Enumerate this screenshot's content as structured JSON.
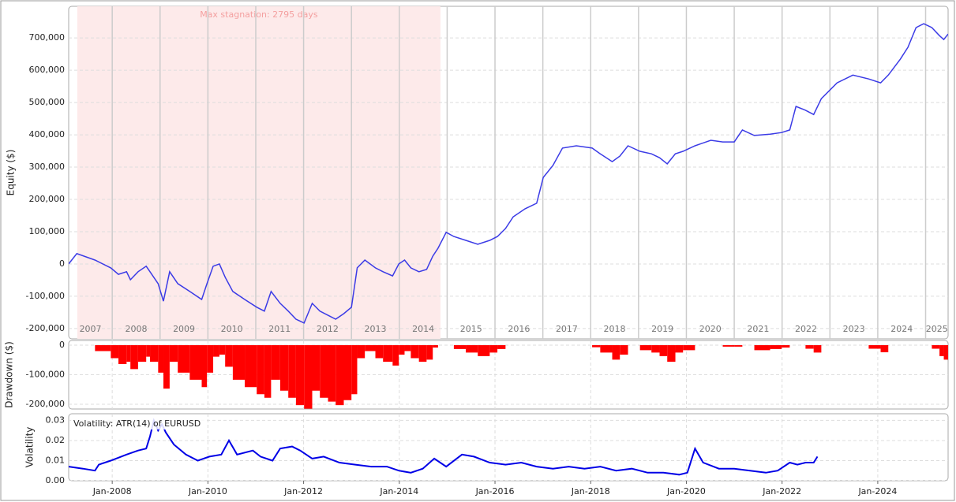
{
  "chart_data": [
    {
      "type": "line",
      "ylabel": "Equity ($)",
      "color": "#3b3be6",
      "stagnation": {
        "label": "Max stagnation: 2795 days",
        "start": 2007.27,
        "end": 2014.86
      },
      "year_labels": [
        "2007",
        "2008",
        "2009",
        "2010",
        "2011",
        "2012",
        "2013",
        "2014",
        "2015",
        "2016",
        "2017",
        "2018",
        "2019",
        "2020",
        "2021",
        "2022",
        "2023",
        "2024",
        "2025"
      ],
      "xlim": [
        2007.09,
        2025.47
      ],
      "ylim": [
        -232000,
        798000
      ],
      "yticks": [
        {
          "value": -200000,
          "label": "-200,000"
        },
        {
          "value": -100000,
          "label": "-100,000"
        },
        0,
        {
          "value": 100000,
          "label": "100,000"
        },
        {
          "value": 200000,
          "label": "200,000"
        },
        {
          "value": 300000,
          "label": "300,000"
        },
        {
          "value": 400000,
          "label": "400,000"
        },
        {
          "value": 500000,
          "label": "500,000"
        },
        {
          "value": 600000,
          "label": "600,000"
        },
        {
          "value": 700000,
          "label": "700,000"
        }
      ],
      "x": [
        2007.09,
        2007.26,
        2007.64,
        2007.97,
        2008.13,
        2008.3,
        2008.38,
        2008.54,
        2008.71,
        2008.79,
        2008.96,
        2009.07,
        2009.2,
        2009.37,
        2009.62,
        2009.87,
        2009.98,
        2010.11,
        2010.24,
        2010.36,
        2010.52,
        2010.77,
        2011.02,
        2011.18,
        2011.32,
        2011.51,
        2011.68,
        2011.84,
        2012.01,
        2012.18,
        2012.34,
        2012.51,
        2012.67,
        2012.84,
        2013.0,
        2013.12,
        2013.28,
        2013.5,
        2013.66,
        2013.86,
        2013.99,
        2014.11,
        2014.24,
        2014.41,
        2014.57,
        2014.7,
        2014.81,
        2014.98,
        2015.14,
        2015.39,
        2015.64,
        2015.89,
        2016.05,
        2016.22,
        2016.38,
        2016.63,
        2016.87,
        2017.01,
        2017.21,
        2017.41,
        2017.7,
        2018.03,
        2018.2,
        2018.45,
        2018.61,
        2018.78,
        2019.03,
        2019.27,
        2019.44,
        2019.6,
        2019.77,
        2019.93,
        2020.18,
        2020.51,
        2020.76,
        2021.0,
        2021.17,
        2021.42,
        2021.75,
        2021.99,
        2022.16,
        2022.29,
        2022.49,
        2022.66,
        2022.82,
        2023.15,
        2023.48,
        2023.81,
        2024.06,
        2024.22,
        2024.47,
        2024.63,
        2024.8,
        2024.96,
        2025.13,
        2025.29,
        2025.38,
        2025.47
      ],
      "values": [
        0,
        32000,
        12000,
        -12000,
        -32000,
        -24000,
        -49000,
        -24000,
        -7000,
        -24000,
        -61000,
        -115000,
        -24000,
        -61000,
        -85000,
        -110000,
        -61000,
        -7000,
        0,
        -41000,
        -85000,
        -110000,
        -134000,
        -146000,
        -85000,
        -122000,
        -146000,
        -171000,
        -183000,
        -122000,
        -146000,
        -159000,
        -171000,
        -154000,
        -134000,
        -12000,
        12000,
        -12000,
        -24000,
        -37000,
        0,
        12000,
        -12000,
        -24000,
        -17000,
        24000,
        49000,
        98000,
        85000,
        73000,
        61000,
        73000,
        85000,
        110000,
        146000,
        171000,
        188000,
        268000,
        305000,
        359000,
        366000,
        359000,
        341000,
        317000,
        334000,
        366000,
        349000,
        341000,
        329000,
        310000,
        341000,
        349000,
        366000,
        383000,
        378000,
        378000,
        415000,
        398000,
        402000,
        407000,
        415000,
        488000,
        476000,
        463000,
        512000,
        561000,
        585000,
        573000,
        561000,
        585000,
        634000,
        671000,
        732000,
        744000,
        732000,
        707000,
        695000,
        712000
      ]
    },
    {
      "type": "bar",
      "ylabel": "Drawdown ($)",
      "color": "#ff0000",
      "xlim": [
        2007.09,
        2025.47
      ],
      "ylim": [
        -216000,
        16000
      ],
      "yticks": [
        {
          "value": -200000,
          "label": "-200,000"
        },
        {
          "value": -100000,
          "label": "-100,000"
        },
        0
      ],
      "x": [
        2007.09,
        2007.26,
        2007.64,
        2007.97,
        2008.13,
        2008.3,
        2008.38,
        2008.54,
        2008.71,
        2008.79,
        2008.96,
        2009.07,
        2009.2,
        2009.37,
        2009.62,
        2009.87,
        2009.98,
        2010.11,
        2010.24,
        2010.36,
        2010.52,
        2010.77,
        2011.02,
        2011.18,
        2011.32,
        2011.51,
        2011.68,
        2011.84,
        2012.01,
        2012.18,
        2012.34,
        2012.51,
        2012.67,
        2012.84,
        2013.0,
        2013.12,
        2013.28,
        2013.5,
        2013.66,
        2013.86,
        2013.99,
        2014.11,
        2014.24,
        2014.41,
        2014.57,
        2014.7,
        2014.81,
        2014.98,
        2015.14,
        2015.39,
        2015.64,
        2015.89,
        2016.05,
        2016.22,
        2016.38,
        2016.63,
        2016.87,
        2017.01,
        2017.21,
        2017.41,
        2017.7,
        2018.03,
        2018.2,
        2018.45,
        2018.61,
        2018.78,
        2019.03,
        2019.27,
        2019.44,
        2019.6,
        2019.77,
        2019.93,
        2020.18,
        2020.51,
        2020.76,
        2021.0,
        2021.17,
        2021.42,
        2021.75,
        2021.99,
        2022.16,
        2022.29,
        2022.49,
        2022.66,
        2022.82,
        2023.15,
        2023.48,
        2023.81,
        2024.06,
        2024.22,
        2024.47,
        2024.63,
        2024.8,
        2024.96,
        2025.13,
        2025.29,
        2025.38,
        2025.47
      ],
      "values": [
        0,
        0,
        -20000,
        -44000,
        -64000,
        -56000,
        -81000,
        -56000,
        -39000,
        -56000,
        -93000,
        -147000,
        -56000,
        -93000,
        -117000,
        -142000,
        -93000,
        -39000,
        -32000,
        -73000,
        -117000,
        -142000,
        -166000,
        -178000,
        -117000,
        -154000,
        -178000,
        -203000,
        -215000,
        -154000,
        -178000,
        -191000,
        -203000,
        -186000,
        -166000,
        -44000,
        -20000,
        -44000,
        -56000,
        -69000,
        -32000,
        -20000,
        -44000,
        -56000,
        -49000,
        -8000,
        0,
        0,
        -13000,
        -25000,
        -37000,
        -25000,
        -13000,
        0,
        0,
        0,
        0,
        0,
        0,
        0,
        0,
        -7000,
        -25000,
        -49000,
        -32000,
        0,
        -17000,
        -25000,
        -37000,
        -56000,
        -25000,
        -17000,
        0,
        0,
        -5000,
        -5000,
        0,
        -17000,
        -13000,
        -8000,
        0,
        0,
        -12000,
        -25000,
        0,
        0,
        0,
        -12000,
        -24000,
        0,
        0,
        0,
        0,
        0,
        -12000,
        -37000,
        -49000,
        -32000
      ]
    },
    {
      "type": "line",
      "ylabel": "Volatility",
      "title": "Volatility: ATR(14) of EURUSD",
      "color": "#0000e6",
      "xlim": [
        2007.09,
        2025.47
      ],
      "ylim": [
        0,
        0.0333
      ],
      "yticks": [
        {
          "value": 0,
          "label": "0.00"
        },
        0.01,
        0.02,
        0.03
      ],
      "xticks": [
        {
          "value": 2008,
          "label": "Jan-2008"
        },
        {
          "value": 2010,
          "label": "Jan-2010"
        },
        {
          "value": 2012,
          "label": "Jan-2012"
        },
        {
          "value": 2014,
          "label": "Jan-2014"
        },
        {
          "value": 2016,
          "label": "Jan-2016"
        },
        {
          "value": 2018,
          "label": "Jan-2018"
        },
        {
          "value": 2020,
          "label": "Jan-2020"
        },
        {
          "value": 2022,
          "label": "Jan-2022"
        },
        {
          "value": 2024,
          "label": "Jan-2024"
        }
      ],
      "x": [
        2007.09,
        2007.39,
        2007.64,
        2007.72,
        2007.97,
        2008.3,
        2008.54,
        2008.71,
        2008.79,
        2008.87,
        2008.96,
        2009.04,
        2009.12,
        2009.29,
        2009.54,
        2009.79,
        2010.03,
        2010.28,
        2010.44,
        2010.61,
        2010.94,
        2011.1,
        2011.35,
        2011.51,
        2011.76,
        2011.93,
        2012.18,
        2012.42,
        2012.75,
        2013.08,
        2013.41,
        2013.74,
        2013.99,
        2014.24,
        2014.49,
        2014.73,
        2014.98,
        2015.31,
        2015.56,
        2015.89,
        2016.22,
        2016.55,
        2016.87,
        2017.21,
        2017.54,
        2017.87,
        2018.2,
        2018.53,
        2018.86,
        2019.19,
        2019.52,
        2019.85,
        2020.02,
        2020.18,
        2020.35,
        2020.68,
        2021.0,
        2021.33,
        2021.66,
        2021.91,
        2022.16,
        2022.32,
        2022.49,
        2022.66,
        2022.74
      ],
      "values": [
        0.007,
        0.006,
        0.005,
        0.008,
        0.01,
        0.013,
        0.015,
        0.016,
        0.022,
        0.03,
        0.025,
        0.028,
        0.024,
        0.018,
        0.013,
        0.01,
        0.012,
        0.013,
        0.02,
        0.013,
        0.015,
        0.012,
        0.01,
        0.016,
        0.017,
        0.015,
        0.011,
        0.012,
        0.009,
        0.008,
        0.007,
        0.007,
        0.005,
        0.004,
        0.006,
        0.011,
        0.007,
        0.013,
        0.012,
        0.009,
        0.008,
        0.009,
        0.007,
        0.006,
        0.007,
        0.006,
        0.007,
        0.005,
        0.006,
        0.004,
        0.004,
        0.003,
        0.004,
        0.016,
        0.009,
        0.006,
        0.006,
        0.005,
        0.004,
        0.005,
        0.009,
        0.008,
        0.009,
        0.009,
        0.012
      ]
    }
  ]
}
